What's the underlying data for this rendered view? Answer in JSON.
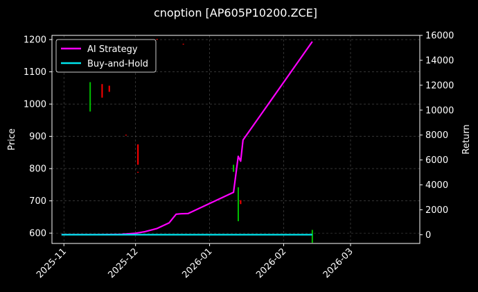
{
  "chart_data": {
    "type": "line",
    "title": "cnoption [AP605P10200.ZCE]",
    "ylabel_left": "Price",
    "ylabel_right": "Return",
    "x_ticks": [
      "2025-11",
      "2025-12",
      "2026-01",
      "2026-02",
      "2026-03"
    ],
    "x_tick_values": [
      "2025-11-01",
      "2025-12-01",
      "2026-01-01",
      "2026-02-01",
      "2026-03-01"
    ],
    "xlim": [
      "2025-10-27",
      "2026-03-30"
    ],
    "ylim_left": [
      568,
      1213
    ],
    "ylim_right": [
      -700,
      16000
    ],
    "yticks_left": [
      600,
      700,
      800,
      900,
      1000,
      1100,
      1200
    ],
    "yticks_right": [
      0,
      2000,
      4000,
      6000,
      8000,
      10000,
      12000,
      14000,
      16000
    ],
    "grid": true,
    "legend_position": "top-left",
    "colors": {
      "strategy": "#ff00ff",
      "buy_hold": "#00e5ee",
      "up": "#00c000",
      "down": "#ff0000",
      "grid": "#555555",
      "background": "#000000"
    },
    "series": [
      {
        "name": "AI Strategy",
        "axis": "right",
        "points": [
          [
            "2025-10-31",
            0
          ],
          [
            "2025-11-15",
            0
          ],
          [
            "2025-11-25",
            30
          ],
          [
            "2025-12-01",
            120
          ],
          [
            "2025-12-05",
            250
          ],
          [
            "2025-12-10",
            500
          ],
          [
            "2025-12-15",
            950
          ],
          [
            "2025-12-18",
            1650
          ],
          [
            "2025-12-20",
            1680
          ],
          [
            "2025-12-23",
            1700
          ],
          [
            "2026-01-11",
            3400
          ],
          [
            "2026-01-13",
            6300
          ],
          [
            "2026-01-14",
            5900
          ],
          [
            "2026-01-15",
            7600
          ],
          [
            "2026-02-13",
            15500
          ]
        ]
      },
      {
        "name": "Buy-and-Hold",
        "axis": "right",
        "points": [
          [
            "2025-10-31",
            0
          ],
          [
            "2026-02-13",
            0
          ]
        ]
      }
    ],
    "candles": [
      {
        "date": "2025-11-12",
        "high": 1068,
        "low": 977,
        "dir": "up"
      },
      {
        "date": "2025-11-17",
        "high": 1062,
        "low": 1020,
        "dir": "down"
      },
      {
        "date": "2025-11-20",
        "high": 1057,
        "low": 1038,
        "dir": "down"
      },
      {
        "date": "2025-11-27",
        "high": 905,
        "low": 903,
        "dir": "down"
      },
      {
        "date": "2025-12-02",
        "high": 875,
        "low": 812,
        "dir": "down"
      },
      {
        "date": "2025-12-02",
        "high": 790,
        "low": 788,
        "dir": "down"
      },
      {
        "date": "2025-12-10",
        "high": 1202,
        "low": 1200,
        "dir": "down"
      },
      {
        "date": "2025-12-21",
        "high": 1187,
        "low": 1185,
        "dir": "down"
      },
      {
        "date": "2026-01-11",
        "high": 812,
        "low": 790,
        "dir": "up"
      },
      {
        "date": "2026-01-13",
        "high": 742,
        "low": 637,
        "dir": "up"
      },
      {
        "date": "2026-01-14",
        "high": 702,
        "low": 690,
        "dir": "down"
      },
      {
        "date": "2026-02-13",
        "high": 610,
        "low": 570,
        "dir": "up"
      }
    ]
  }
}
